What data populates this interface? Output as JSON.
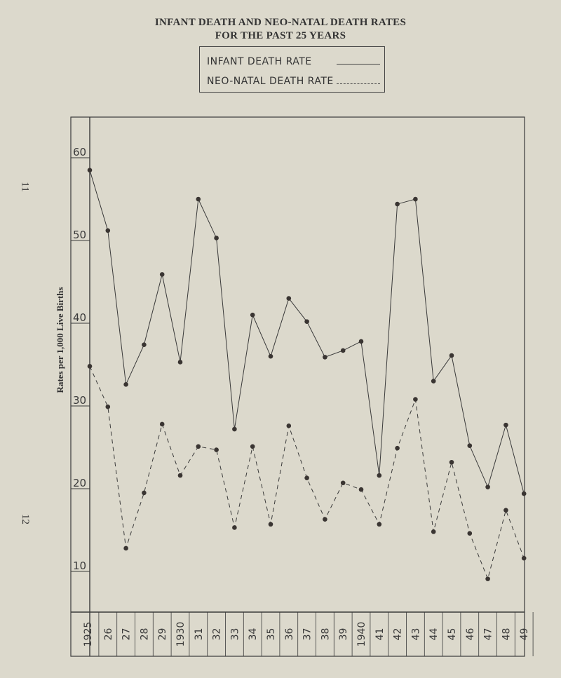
{
  "page": {
    "margin_numbers": [
      "11",
      "12"
    ]
  },
  "colors": {
    "paper": "#dcd9cc",
    "ink": "#3a3a3a"
  },
  "chart_data": {
    "type": "line",
    "title": "INFANT DEATH AND NEO-NATAL DEATH RATES",
    "subtitle": "FOR THE PAST 25 YEARS",
    "ylabel": "Rates per 1,000 Live Births",
    "xlabel": "",
    "ylim": [
      2,
      65
    ],
    "yticks": [
      10,
      20,
      30,
      40,
      50,
      60
    ],
    "ytick_labels": [
      "10",
      "20",
      "30",
      "40",
      "50",
      "60"
    ],
    "categories": [
      "1925",
      "26",
      "27",
      "28",
      "29",
      "1930",
      "31",
      "32",
      "33",
      "34",
      "35",
      "36",
      "37",
      "38",
      "39",
      "1940",
      "41",
      "42",
      "43",
      "44",
      "45",
      "46",
      "47",
      "48",
      "49"
    ],
    "legend_placement": "top-center",
    "grid": false,
    "series": [
      {
        "name": "INFANT DEATH RATE",
        "style": "solid",
        "values": [
          58.5,
          51.2,
          32.6,
          37.4,
          45.9,
          35.3,
          55.0,
          50.3,
          27.2,
          41.0,
          36.0,
          43.0,
          40.2,
          35.9,
          36.7,
          37.8,
          21.6,
          54.4,
          55.0,
          33.0,
          36.1,
          25.2,
          20.2,
          27.7,
          19.4
        ]
      },
      {
        "name": "NEO-NATAL DEATH RATE",
        "style": "dashed",
        "values": [
          34.8,
          29.9,
          12.8,
          19.5,
          27.8,
          21.6,
          25.1,
          24.7,
          15.3,
          25.1,
          15.7,
          27.6,
          21.3,
          16.3,
          20.7,
          19.9,
          15.7,
          24.9,
          30.8,
          14.8,
          23.2,
          14.6,
          9.1,
          17.4,
          11.6
        ]
      }
    ]
  }
}
